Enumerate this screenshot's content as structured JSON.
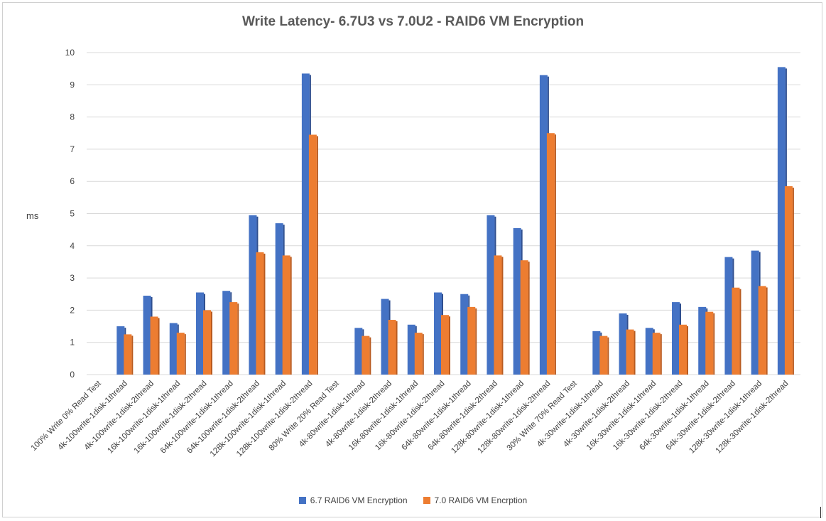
{
  "chart_data": {
    "type": "bar",
    "title": "Write Latency- 6.7U3 vs 7.0U2 - RAID6 VM Encryption",
    "xlabel": "",
    "ylabel": "ms",
    "ylim": [
      0,
      10
    ],
    "yticks": [
      0,
      1,
      2,
      3,
      4,
      5,
      6,
      7,
      8,
      9,
      10
    ],
    "grid": true,
    "legend_position": "bottom",
    "categories": [
      "100% Write 0% Read Test",
      "4k-100write-1disk-1thread",
      "4k-100write-1disk-2thread",
      "16k-100write-1disk-1thread",
      "16k-100write-1disk-2thread",
      "64k-100write-1disk-1thread",
      "64k-100write-1disk-2thread",
      "128k-100write-1disk-1thread",
      "128k-100write-1disk-2thread",
      "80% Write 20% Read Test",
      "4k-80write-1disk-1thread",
      "4k-80write-1disk-2thread",
      "16k-80write-1disk-1thread",
      "16k-80write-1disk-2thread",
      "64k-80write-1disk-1thread",
      "64k-80write-1disk-2thread",
      "128k-80write-1disk-1thread",
      "128k-80write-1disk-2thread",
      "30% Write 70% Read Test",
      "4k-30write-1disk-1thread",
      "4k-30write-1disk-2thread",
      "16k-30write-1disk-1thread",
      "16k-30write-1disk-2thread",
      "64k-30write-1disk-1thread",
      "64k-30write-1disk-2thread",
      "128k-30write-1disk-1thread",
      "128k-30write-1disk-2thread"
    ],
    "series": [
      {
        "name": "6.7 RAID6 VM Encryption",
        "color": "#4472c4",
        "values": [
          null,
          1.5,
          2.45,
          1.6,
          2.55,
          2.6,
          4.95,
          4.7,
          9.35,
          null,
          1.45,
          2.35,
          1.55,
          2.55,
          2.5,
          4.95,
          4.55,
          9.3,
          null,
          1.35,
          1.9,
          1.45,
          2.25,
          2.1,
          3.65,
          3.85,
          9.55
        ]
      },
      {
        "name": "7.0 RAID6 VM Encrption",
        "color": "#ed7d31",
        "values": [
          null,
          1.25,
          1.8,
          1.3,
          2.0,
          2.25,
          3.8,
          3.7,
          7.45,
          null,
          1.2,
          1.7,
          1.3,
          1.85,
          2.1,
          3.7,
          3.55,
          7.5,
          null,
          1.2,
          1.4,
          1.3,
          1.55,
          1.95,
          2.7,
          2.75,
          5.85
        ]
      }
    ]
  }
}
